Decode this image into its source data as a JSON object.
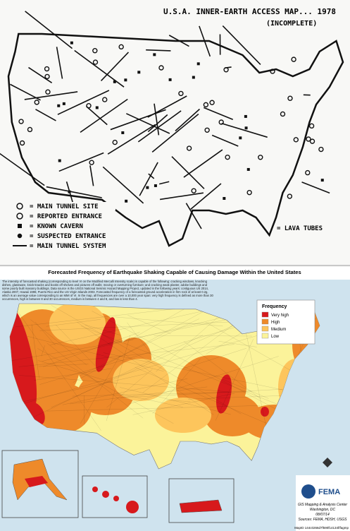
{
  "top_map": {
    "title": "U.S.A. INNER-EARTH ACCESS MAP... 1978",
    "subtitle": "(INCOMPLETE)",
    "legend": [
      "= MAIN TUNNEL SITE",
      "= REPORTED ENTRANCE",
      "= KNOWN CAVERN",
      "= SUSPECTED ENTRANCE",
      "= MAIN TUNNEL SYSTEM"
    ],
    "lava_legend": "= LAVA TUBES"
  },
  "bottom_map": {
    "title": "Forecasted Frequency of Earthquake Shaking Capable of Causing Damage Within the United States",
    "description": "The intensity of forecasted shaking (corresponding to level VI on the Modified Mercalli Intensity scale) is capable of the following: cracking windows, knocking dishes, glassware, knick-knacks and books off shelves and pictures off walls; moving or overturning furniture; and cracking weak plaster, adobe buildings and some poorly built masonry buildings. Data source is the USGS National Seismic Hazard Mapping Project, updated in the following years: contiguous US 2014, Alaska 2007, Hawaii 1998, Puerto Rico and the US Virgin Islands 2003. Forecasted frequency of a forecasted ground acceleration in firm rock of at least 0.2g, which is an average value corresponding to an MMI of VI. In the map, all frequencies are over a 10,000 year span: very high frequency is defined as more than 30 occurrences, high is between 8 and 30 occurrences, medium is between 4 and 8, and low is less than 4.",
    "legend_title": "Frequency",
    "legend": [
      {
        "label": "Very high",
        "color": "#d7191c"
      },
      {
        "label": "High",
        "color": "#ee8a2a"
      },
      {
        "label": "Medium",
        "color": "#fdc55c"
      },
      {
        "label": "Low",
        "color": "#fbf39a"
      }
    ],
    "agency": "FEMA",
    "credit": [
      "GIS Mapping & Analysis Center",
      "Washington, DC",
      "08/07/14",
      "Sources: FEMA, HDSH, USGS"
    ],
    "map_id": "MapID 144c0266d7f590f14134f/fagmp"
  }
}
